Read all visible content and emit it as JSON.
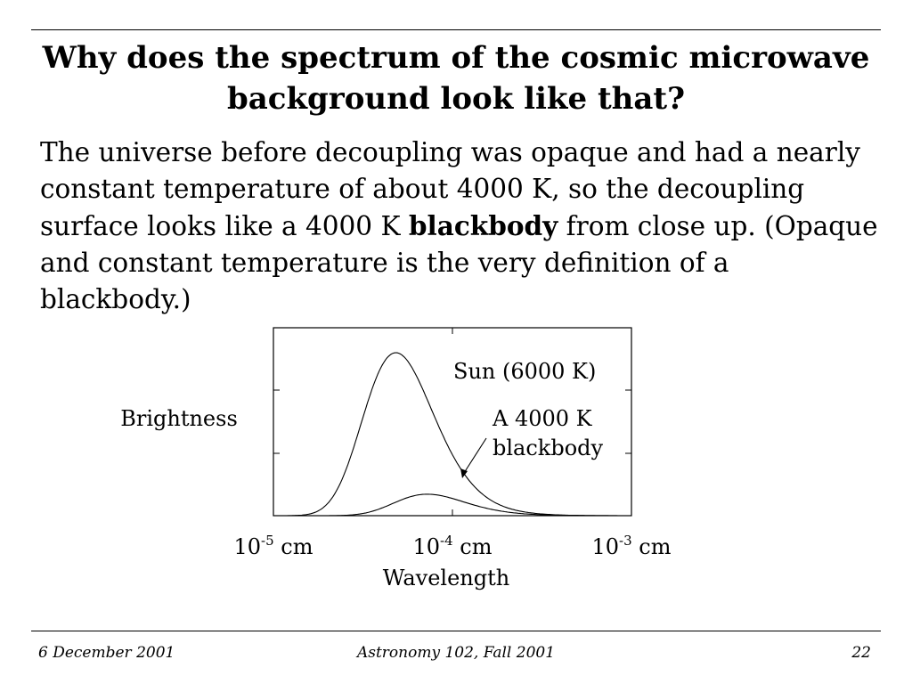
{
  "slide": {
    "title": "Why does the spectrum of the cosmic microwave background look like that?",
    "body": {
      "part1": "The universe before decoupling was opaque and had a nearly constant temperature of about 4000 K, so the decoupling surface looks like a 4000 K ",
      "bold": "blackbody",
      "part2": " from close up. (Opaque and constant temperature is the very definition of a blackbody.)"
    }
  },
  "footer": {
    "date": "6 December 2001",
    "course": "Astronomy 102, Fall 2001",
    "page": "22"
  },
  "chart_data": {
    "type": "line",
    "title": "",
    "xlabel": "Wavelength",
    "ylabel": "Brightness",
    "x_scale": "log",
    "xlim_exponent": [
      -5,
      -3
    ],
    "ylim": [
      0,
      1
    ],
    "grid": false,
    "x_ticks": [
      {
        "exp": -5,
        "base": "10",
        "sup": "-5",
        "unit": " cm"
      },
      {
        "exp": -4,
        "base": "10",
        "sup": "-4",
        "unit": " cm"
      },
      {
        "exp": -3,
        "base": "10",
        "sup": "-3",
        "unit": " cm"
      }
    ],
    "series": [
      {
        "key": "sun",
        "label": "Sun (6000 K)",
        "temperature_K": 6000
      },
      {
        "key": "bb4000",
        "label_lines": [
          "A 4000 K",
          "blackbody"
        ],
        "temperature_K": 4000
      }
    ]
  }
}
